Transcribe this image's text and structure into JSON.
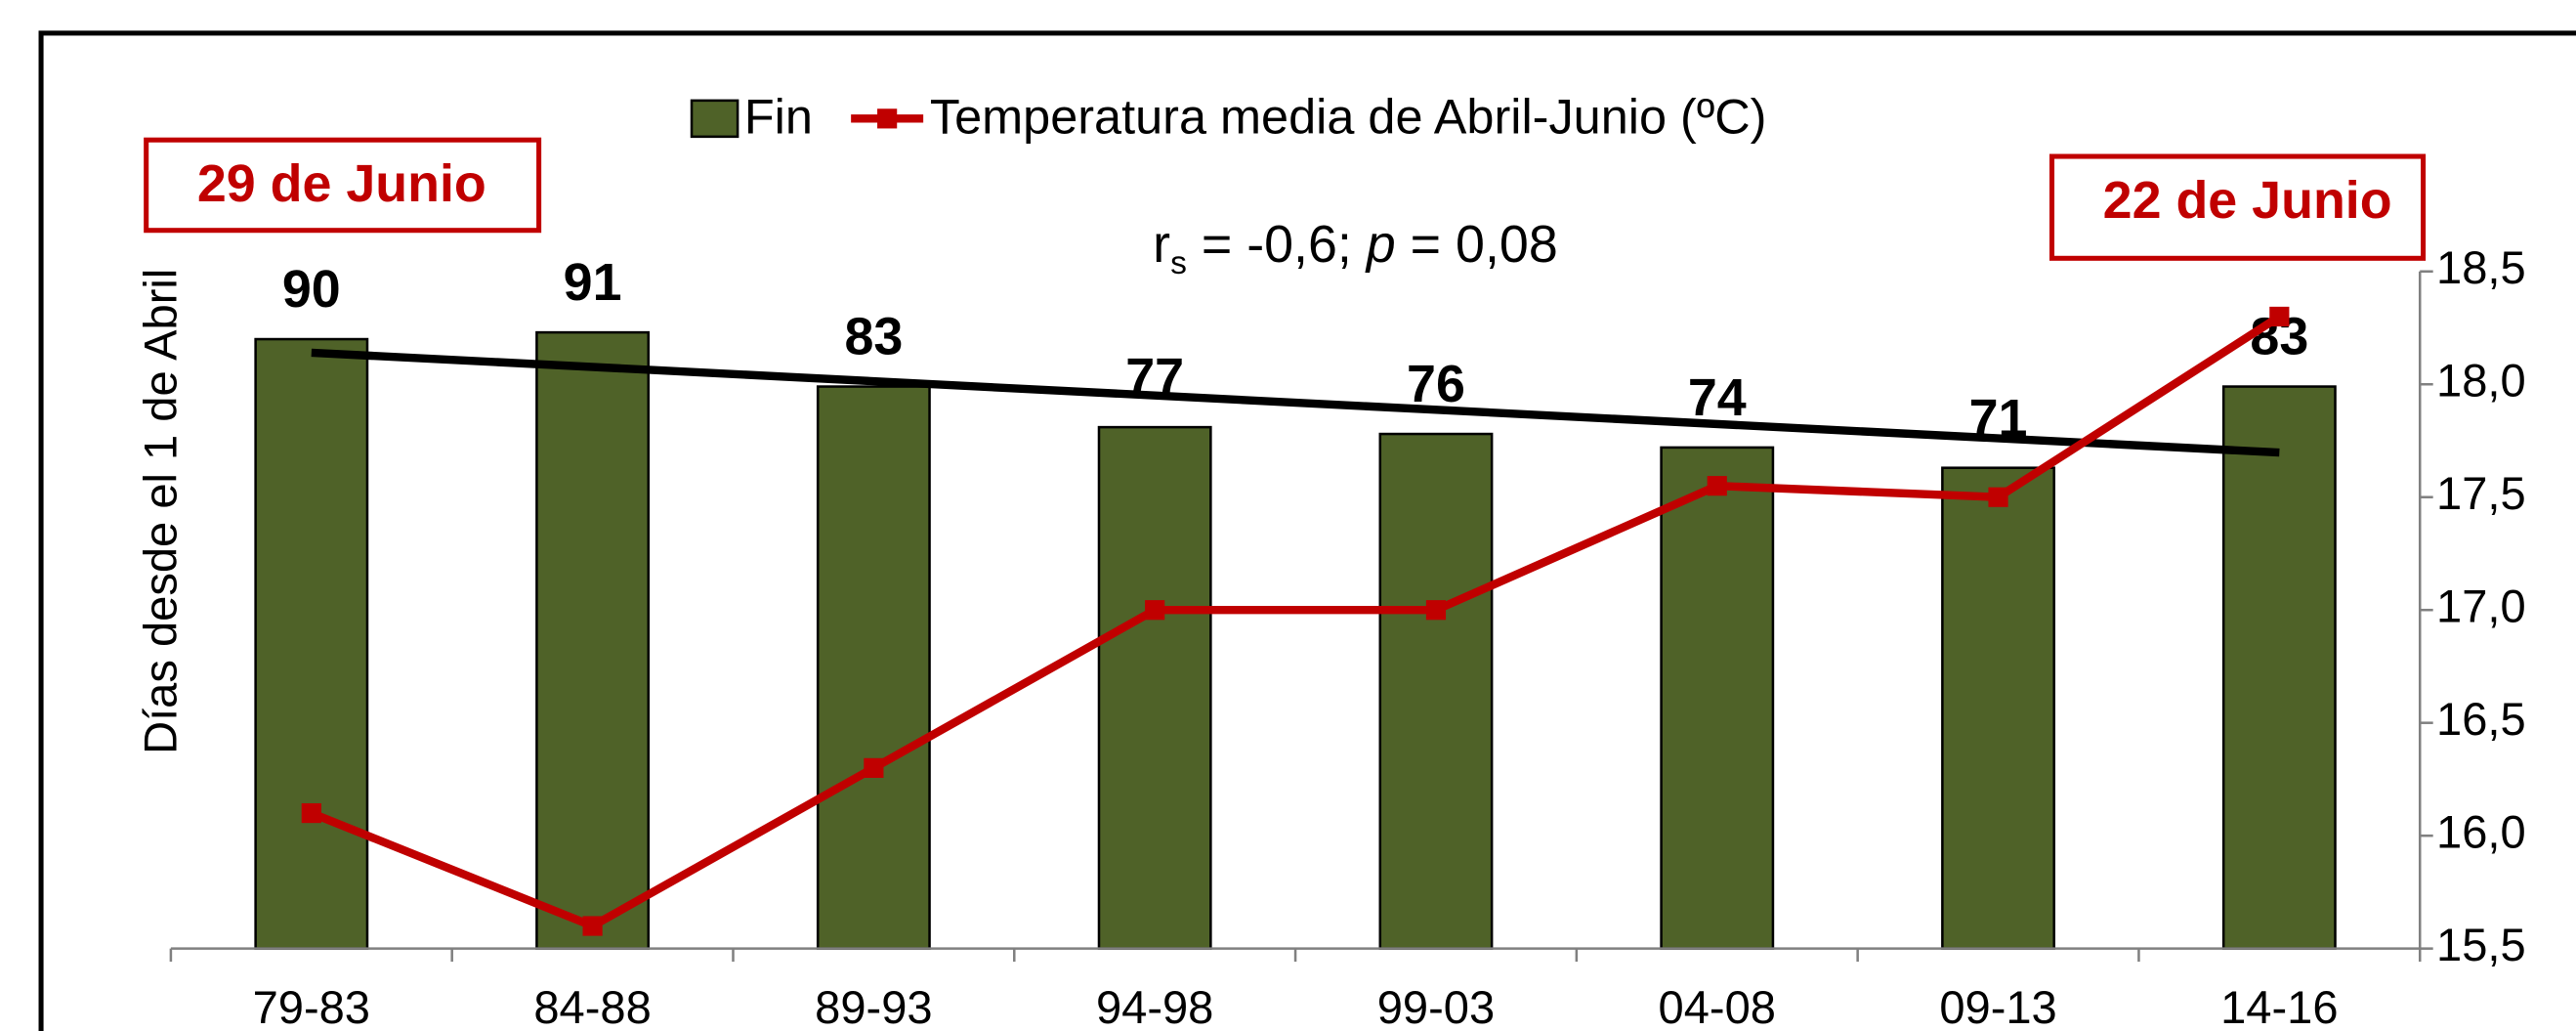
{
  "chart_data": {
    "type": "bar_line",
    "categories": [
      "79-83",
      "84-88",
      "89-93",
      "94-98",
      "99-03",
      "04-08",
      "09-13",
      "14-16"
    ],
    "series": [
      {
        "name": "Fin",
        "color": "#4f6228",
        "values": [
          90,
          91,
          83,
          77,
          76,
          74,
          71,
          83
        ]
      },
      {
        "name": "Temperatura media de Abril-Junio (ºC)",
        "color": "#c00000",
        "axis": "y2",
        "values": [
          16.1,
          15.6,
          16.3,
          17.0,
          17.0,
          17.55,
          17.5,
          18.3
        ]
      }
    ],
    "ylabel": "Días desde el 1 de Abril",
    "ylim": [
      0,
      100
    ],
    "y2lim": [
      15.5,
      18.5
    ],
    "y2ticks": [
      {
        "value": 15.5,
        "label": "15,5"
      },
      {
        "value": 16,
        "label": "16,0"
      },
      {
        "value": 16.5,
        "label": "16,5"
      },
      {
        "value": 17,
        "label": "17,0"
      },
      {
        "value": 17.5,
        "label": "17,5"
      },
      {
        "value": 18,
        "label": "18,0"
      },
      {
        "value": 18.5,
        "label": "18,5"
      }
    ],
    "annotations": [
      "29 de Junio",
      "22 de Junio"
    ],
    "stat_text": [
      "r",
      "s",
      " = -0,6; ",
      "p",
      " = 0,08"
    ],
    "trendline": true,
    "legend": "top"
  }
}
